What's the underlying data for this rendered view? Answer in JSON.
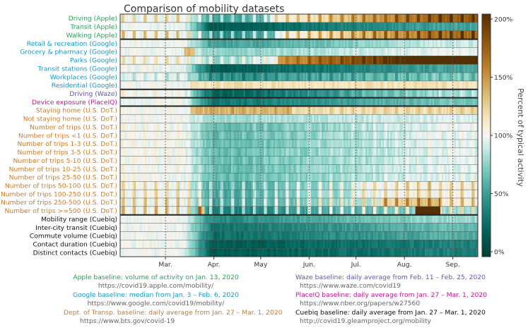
{
  "chart_data": {
    "type": "heatmap",
    "title": "Comparison of mobility datasets",
    "x_tick_labels": [
      "Mar.",
      "Apr.",
      "May",
      "Jun.",
      "Jul.",
      "Aug.",
      "Sep."
    ],
    "x_ticks_day": [
      29,
      60,
      90,
      121,
      151,
      182,
      213
    ],
    "x_range_days": [
      0,
      229
    ],
    "x_range_label": "Feb. 1 – Sep. 16, 2020",
    "rows": [
      {
        "label": "Driving (Apple)",
        "group": "apple",
        "profile": "driving_apple"
      },
      {
        "label": "Transit (Apple)",
        "group": "apple",
        "profile": "transit"
      },
      {
        "label": "Walking (Apple)",
        "group": "apple",
        "profile": "walking"
      },
      {
        "label": "Retail & recreation (Google)",
        "group": "google",
        "profile": "retail"
      },
      {
        "label": "Grocery & pharmacy (Google)",
        "group": "google",
        "profile": "grocery"
      },
      {
        "label": "Parks (Google)",
        "group": "google",
        "profile": "parks"
      },
      {
        "label": "Transit stations (Google)",
        "group": "google",
        "profile": "transit"
      },
      {
        "label": "Workplaces (Google)",
        "group": "google",
        "profile": "workplace"
      },
      {
        "label": "Residential (Google)",
        "group": "google",
        "profile": "residential"
      },
      {
        "label": "Driving (Waze)",
        "group": "waze",
        "profile": "waze"
      },
      {
        "label": "Device exposure (PlaceIQ)",
        "group": "placeiq",
        "profile": "exposure"
      },
      {
        "label": "Staying home (U.S. DoT.)",
        "group": "dot",
        "profile": "staying_home"
      },
      {
        "label": "Not staying home (U.S. DoT.)",
        "group": "dot",
        "profile": "not_home"
      },
      {
        "label": "Number of trips (U.S. DoT.)",
        "group": "dot",
        "profile": "trips"
      },
      {
        "label": "Number of trips <1 (U.S. DoT.)",
        "group": "dot",
        "profile": "trips"
      },
      {
        "label": "Number of trips 1-3 (U.S. DoT.)",
        "group": "dot",
        "profile": "trips"
      },
      {
        "label": "Number of trips 3-5 (U.S. DoT.)",
        "group": "dot",
        "profile": "trips"
      },
      {
        "label": "Number of trips 5-10 (U.S. DoT.)",
        "group": "dot",
        "profile": "trips"
      },
      {
        "label": "Number of trips 10-25 (U.S. DoT.)",
        "group": "dot",
        "profile": "trips"
      },
      {
        "label": "Number of trips 25-50 (U.S. DoT.)",
        "group": "dot",
        "profile": "trips"
      },
      {
        "label": "Number of trips 50-100 (U.S. DoT.)",
        "group": "dot",
        "profile": "trips_long"
      },
      {
        "label": "Number of trips 100-250 (U.S. DoT.)",
        "group": "dot",
        "profile": "trips_long"
      },
      {
        "label": "Number of trips 250-500 (U.S. DoT.)",
        "group": "dot",
        "profile": "trips_xlong"
      },
      {
        "label": "Number of trips >=500 (U.S. DoT.)",
        "group": "dot",
        "profile": "trips_xxlong"
      },
      {
        "label": "Mobility range (Cuebiq)",
        "group": "cuebiq",
        "profile": "cuebiq_range"
      },
      {
        "label": "Inter-city transit (Cuebiq)",
        "group": "cuebiq",
        "profile": "cuebiq_intercity"
      },
      {
        "label": "Commute volume (Cuebiq)",
        "group": "cuebiq",
        "profile": "cuebiq_commute"
      },
      {
        "label": "Contact duration (Cuebiq)",
        "group": "cuebiq",
        "profile": "cuebiq_contact"
      },
      {
        "label": "Distinct contacts (Cuebiq)",
        "group": "cuebiq",
        "profile": "cuebiq_contact"
      }
    ],
    "group_separators_after_row": [
      2,
      8,
      9,
      10,
      23
    ],
    "colorbar": {
      "label": "Percent of typical activity",
      "range": [
        0,
        200
      ],
      "tick_values": [
        0,
        50,
        100,
        150,
        200
      ],
      "tick_labels": [
        "0%",
        "50%",
        "100%",
        "150%",
        "200%"
      ],
      "colormap": "BrBG_r"
    },
    "group_colors": {
      "apple": "#2ca05a",
      "google": "#0f99c7",
      "waze": "#6a4fc8",
      "placeiq": "#c2168f",
      "dot": "#c87d2a",
      "cuebiq": "#111111"
    }
  },
  "footnotes": [
    {
      "group": "apple",
      "text": "Apple baseline: volume of activity on Jan. 13, 2020",
      "url": "https://covid19.apple.com/mobility/"
    },
    {
      "group": "google",
      "text": "Google baseline: median from Jan. 3 – Feb. 6, 2020",
      "url": "https://www.google.com/covid19/mobility/"
    },
    {
      "group": "dot",
      "text": "Dept. of Transp. baseline: daily average from Jan. 27 – Mar. 1, 2020",
      "url": "https://www.bts.gov/covid-19"
    },
    {
      "group": "waze",
      "text": "Waze baseline: daily average from Feb. 11 – Feb. 25, 2020",
      "url": "https://www.waze.com/covid19"
    },
    {
      "group": "placeiq",
      "text": "PlaceIQ baseline: daily average from Jan. 27 – Mar. 1, 2020",
      "url": "https://www.nber.org/papers/w27560"
    },
    {
      "group": "cuebiq",
      "text": "Cuebiq baseline: daily average from Jan. 27 – Mar. 1, 2020",
      "url": "http://covid19.gleamproject.org/mobility"
    }
  ]
}
